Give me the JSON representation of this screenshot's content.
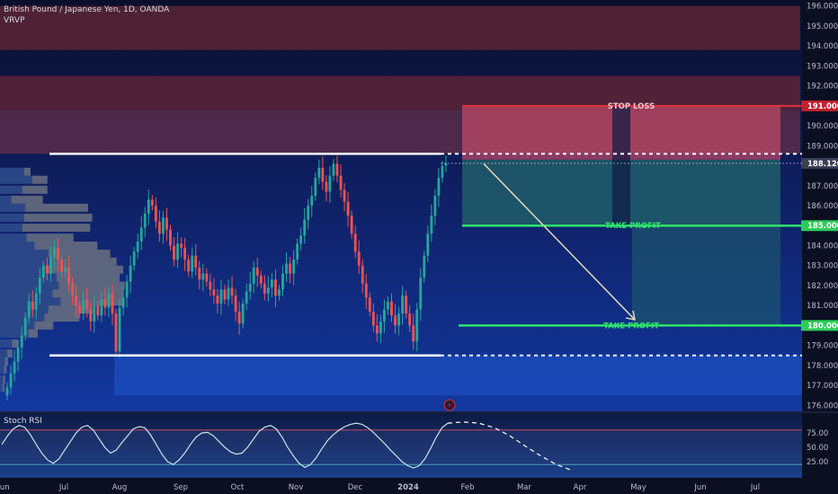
{
  "header": {
    "symbol": "British Pound / Japanese Yen, 1D, OANDA",
    "indicator": "VRVP"
  },
  "oscillator": {
    "name": "Stoch RSI",
    "ticks": [
      "75.00",
      "50.00",
      "25.00"
    ]
  },
  "colors": {
    "background": "#0c1230",
    "bull": "#26a69a",
    "bear": "#ef5350",
    "stop_zone": "#8f3a55",
    "target_zone": "#1e5d6a",
    "resistance_band": "#5c2535",
    "take_profit_line": "#2ee66a",
    "stop_loss_line": "#e0323d"
  },
  "chart_data": {
    "type": "candlestick",
    "title": "British Pound / Japanese Yen, 1D, OANDA",
    "x_axis": {
      "labels": [
        "Jun",
        "Jul",
        "Aug",
        "Sep",
        "Oct",
        "Nov",
        "Dec",
        "2024",
        "Feb",
        "Mar",
        "Apr",
        "May",
        "Jun",
        "Jul"
      ]
    },
    "y_axis": {
      "range": [
        175.7,
        196.3
      ],
      "ticks": [
        "176.000",
        "177.000",
        "178.000",
        "179.000",
        "180.000",
        "181.000",
        "182.000",
        "183.000",
        "184.000",
        "185.000",
        "186.000",
        "187.000",
        "188.000",
        "189.000",
        "190.000",
        "191.000",
        "192.000",
        "193.000",
        "194.000",
        "195.000",
        "196.000"
      ]
    },
    "price_labels": [
      {
        "value": 191.0,
        "text": "191.000",
        "kind": "stop"
      },
      {
        "value": 188.12,
        "text": "188.120",
        "kind": "current"
      },
      {
        "value": 185.0,
        "text": "185.000",
        "kind": "target"
      },
      {
        "value": 180.0,
        "text": "180.000",
        "kind": "target"
      }
    ],
    "levels": {
      "resistance": 188.6,
      "support": 178.5,
      "stop_loss": {
        "value": 191.0,
        "label": "STOP LOSS"
      },
      "take_profit_1": {
        "value": 185.0,
        "label": "TAKE PROFIT"
      },
      "take_profit_2": {
        "value": 180.0,
        "label": "TAKE PROFIT"
      }
    },
    "zones": [
      {
        "name": "upper-supply",
        "from": 193.8,
        "to": 196.0
      },
      {
        "name": "mid-supply",
        "from": 190.8,
        "to": 192.5
      }
    ],
    "candles_close": [
      176.9,
      177.6,
      178.2,
      178.9,
      179.5,
      180.4,
      181.2,
      180.8,
      181.6,
      182.4,
      183.0,
      182.6,
      183.4,
      183.9,
      183.3,
      182.7,
      182.9,
      182.1,
      181.5,
      181.0,
      180.6,
      181.3,
      180.8,
      180.2,
      181.0,
      180.5,
      181.3,
      180.9,
      181.6,
      180.6,
      178.7,
      180.9,
      181.4,
      182.2,
      183.0,
      183.7,
      184.2,
      184.9,
      185.6,
      186.3,
      186.0,
      185.2,
      184.6,
      185.4,
      184.8,
      184.0,
      183.3,
      184.1,
      183.9,
      183.3,
      182.7,
      183.5,
      182.9,
      182.3,
      182.6,
      182.2,
      181.8,
      181.5,
      181.1,
      181.8,
      181.3,
      181.9,
      181.5,
      180.7,
      180.1,
      181.1,
      181.7,
      182.1,
      182.9,
      182.5,
      182.1,
      181.6,
      181.9,
      182.3,
      181.5,
      181.8,
      182.6,
      183.1,
      182.6,
      183.3,
      184.1,
      184.5,
      185.3,
      186.0,
      186.5,
      187.4,
      187.9,
      187.2,
      186.7,
      187.5,
      188.1,
      187.5,
      186.8,
      186.2,
      185.5,
      184.6,
      183.7,
      183.0,
      182.1,
      181.4,
      180.7,
      180.0,
      179.6,
      180.2,
      180.8,
      181.2,
      180.5,
      180.0,
      180.6,
      181.5,
      180.6,
      180.0,
      179.2,
      180.8,
      182.4,
      183.5,
      184.6,
      185.5,
      186.5,
      187.4,
      188.0,
      188.12
    ],
    "candles_x_range": [
      "Jun 2023",
      "Jan 2024"
    ],
    "projection": {
      "from": 188.1,
      "to": 180.2,
      "start": "late Jan",
      "end": "late Apr"
    },
    "volume_profile_note": "visible range volume profile on left",
    "stoch_rsi": {
      "levels": [
        80,
        20
      ],
      "values": [
        55,
        70,
        82,
        88,
        85,
        72,
        55,
        40,
        28,
        22,
        30,
        45,
        60,
        75,
        85,
        88,
        80,
        65,
        50,
        40,
        45,
        58,
        70,
        82,
        86,
        84,
        72,
        55,
        38,
        25,
        20,
        28,
        40,
        55,
        68,
        75,
        76,
        70,
        60,
        50,
        42,
        38,
        40,
        50,
        64,
        78,
        85,
        88,
        82,
        68,
        50,
        35,
        22,
        15,
        20,
        32,
        48,
        62,
        72,
        80,
        86,
        90,
        92,
        90,
        84,
        76,
        66,
        56,
        45,
        35,
        25,
        18,
        14,
        18,
        30,
        48,
        68,
        84,
        92
      ],
      "projected": [
        92,
        94,
        92,
        84,
        70,
        52,
        35,
        20,
        10
      ]
    }
  }
}
